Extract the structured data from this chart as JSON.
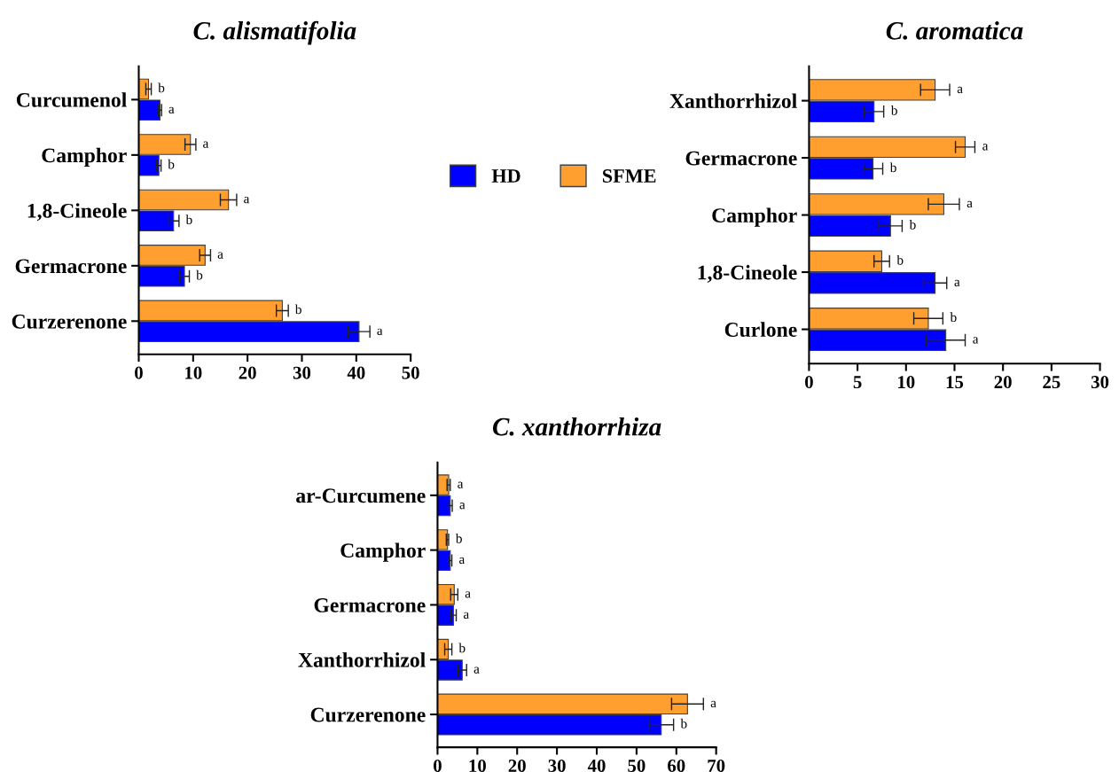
{
  "chart_data": [
    {
      "type": "bar",
      "orientation": "horizontal",
      "title": "C. alismatifolia",
      "categories": [
        "Curcumenol",
        "Camphor",
        "1,8-Cineole",
        "Germacrone",
        "Curzerenone"
      ],
      "xlim": [
        0,
        50
      ],
      "xticks": [
        0,
        10,
        20,
        30,
        40,
        50
      ],
      "legend": "right",
      "grid": false,
      "series": [
        {
          "name": "HD",
          "color": "#0000ff",
          "values": [
            3.9,
            3.7,
            6.4,
            8.4,
            40.5
          ],
          "errors": [
            0.3,
            0.4,
            1.0,
            0.9,
            2.0
          ],
          "value_labels": [
            "a",
            "b",
            "b",
            "b",
            "a"
          ]
        },
        {
          "name": "SFME",
          "color": "#ff9f30",
          "values": [
            1.8,
            9.5,
            16.5,
            12.2,
            26.4
          ],
          "errors": [
            0.5,
            1.0,
            1.5,
            1.0,
            1.1
          ],
          "value_labels": [
            "b",
            "a",
            "a",
            "a",
            "b"
          ]
        }
      ]
    },
    {
      "type": "bar",
      "orientation": "horizontal",
      "title": "C. aromatica",
      "categories": [
        "Xanthorrhizol",
        "Germacrone",
        "Camphor",
        "1,8-Cineole",
        "Curlone"
      ],
      "xlim": [
        0,
        30
      ],
      "xticks": [
        0,
        5,
        10,
        15,
        20,
        25,
        30
      ],
      "grid": false,
      "series": [
        {
          "color": "#0000ff",
          "values": [
            6.7,
            6.6,
            8.4,
            13.0,
            14.1
          ],
          "errors": [
            1.0,
            1.0,
            1.2,
            1.2,
            2.0
          ],
          "value_labels": [
            "b",
            "b",
            "b",
            "a",
            "a"
          ]
        },
        {
          "color": "#ff9f30",
          "values": [
            13.0,
            16.1,
            13.9,
            7.5,
            12.3
          ],
          "errors": [
            1.5,
            1.0,
            1.6,
            0.8,
            1.5
          ],
          "value_labels": [
            "a",
            "a",
            "a",
            "b",
            "b"
          ]
        }
      ]
    },
    {
      "type": "bar",
      "orientation": "horizontal",
      "title": "C. xanthorrhiza",
      "categories": [
        "ar-Curcumene",
        "Camphor",
        "Germacrone",
        "Xanthorrhizol",
        "Curzerenone"
      ],
      "xlim": [
        0,
        70
      ],
      "xticks": [
        0,
        10,
        20,
        30,
        40,
        50,
        60,
        70
      ],
      "grid": false,
      "series": [
        {
          "color": "#0000ff",
          "values": [
            3.2,
            3.2,
            4.0,
            6.2,
            56.2
          ],
          "errors": [
            0.5,
            0.4,
            0.7,
            1.1,
            3.1
          ],
          "value_labels": [
            "a",
            "a",
            "a",
            "a",
            "b"
          ]
        },
        {
          "color": "#ff9f30",
          "values": [
            2.8,
            2.5,
            4.2,
            2.7,
            62.8
          ],
          "errors": [
            0.4,
            0.3,
            0.9,
            0.9,
            4.0
          ],
          "value_labels": [
            "a",
            "b",
            "a",
            "b",
            "a"
          ]
        }
      ]
    }
  ]
}
